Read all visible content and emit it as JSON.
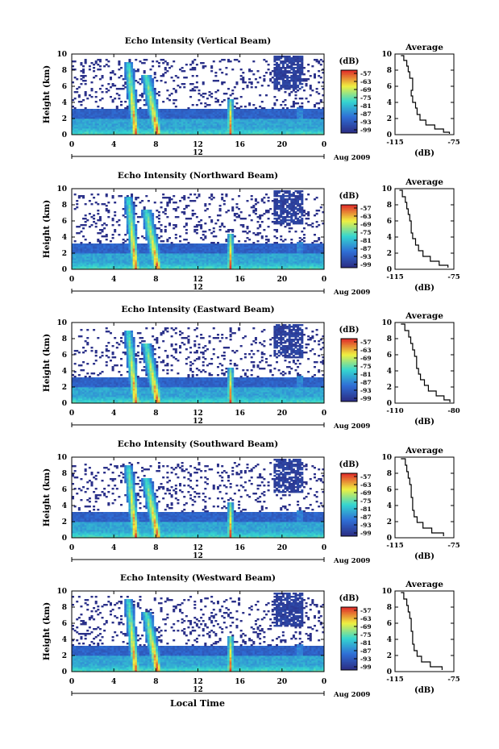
{
  "figure": {
    "xlabel": "Local Time",
    "colorbar_unit": "(dB)",
    "colorbar_ticks": [
      "-57",
      "-63",
      "-69",
      "-75",
      "-81",
      "-87",
      "-93",
      "-99"
    ],
    "date_label": "Aug 2009",
    "marker_label": "12",
    "colors": {
      "low": "#2b2f87",
      "mid_low": "#2f6fd6",
      "mid": "#35d6d0",
      "mid_high": "#f0f040",
      "high": "#e0302a"
    }
  },
  "chart_data": [
    {
      "type": "heatmap",
      "title": "Echo Intensity (Vertical Beam)",
      "ylabel": "Height (km)",
      "x_ticks": [
        "0",
        "4",
        "8",
        "12",
        "16",
        "20",
        "0"
      ],
      "y_ticks": [
        "0",
        "2",
        "4",
        "6",
        "8",
        "10"
      ],
      "xlim": [
        0,
        24
      ],
      "ylim": [
        0,
        10
      ],
      "colorbar_range": [
        -99,
        -57
      ],
      "profile": {
        "title": "Average",
        "xlabel": "(dB)",
        "x_ticks": [
          "-115",
          "-75"
        ],
        "y_ticks": [
          "0",
          "2",
          "4",
          "6",
          "8",
          "10"
        ],
        "xlim": [
          -115,
          -75
        ],
        "ylim": [
          0,
          10
        ],
        "points": [
          [
            -111,
            9.8
          ],
          [
            -109,
            9.2
          ],
          [
            -107,
            8.5
          ],
          [
            -106,
            7.8
          ],
          [
            -105,
            7.0
          ],
          [
            -103,
            6.3
          ],
          [
            -103,
            5.5
          ],
          [
            -104,
            4.8
          ],
          [
            -103,
            4.0
          ],
          [
            -101,
            3.3
          ],
          [
            -100,
            2.5
          ],
          [
            -98,
            1.8
          ],
          [
            -94,
            1.2
          ],
          [
            -88,
            0.7
          ],
          [
            -82,
            0.3
          ],
          [
            -78,
            0.1
          ]
        ]
      }
    },
    {
      "type": "heatmap",
      "title": "Echo Intensity (Northward Beam)",
      "ylabel": "Height (km)",
      "x_ticks": [
        "0",
        "4",
        "8",
        "12",
        "16",
        "20",
        "0"
      ],
      "y_ticks": [
        "0",
        "2",
        "4",
        "6",
        "8",
        "10"
      ],
      "xlim": [
        0,
        24
      ],
      "ylim": [
        0,
        10
      ],
      "colorbar_range": [
        -99,
        -57
      ],
      "profile": {
        "title": "Average",
        "xlabel": "(dB)",
        "x_ticks": [
          "-115",
          "-75"
        ],
        "y_ticks": [
          "0",
          "2",
          "4",
          "6",
          "8",
          "10"
        ],
        "xlim": [
          -115,
          -75
        ],
        "ylim": [
          0,
          10
        ],
        "points": [
          [
            -112,
            9.8
          ],
          [
            -110,
            9.0
          ],
          [
            -108,
            8.3
          ],
          [
            -107,
            7.5
          ],
          [
            -106,
            6.8
          ],
          [
            -105,
            6.0
          ],
          [
            -104,
            5.3
          ],
          [
            -104,
            4.5
          ],
          [
            -103,
            3.8
          ],
          [
            -101,
            3.0
          ],
          [
            -99,
            2.3
          ],
          [
            -96,
            1.6
          ],
          [
            -91,
            1.0
          ],
          [
            -85,
            0.5
          ],
          [
            -79,
            0.2
          ]
        ]
      }
    },
    {
      "type": "heatmap",
      "title": "Echo Intensity (Eastward Beam)",
      "ylabel": "Height (km)",
      "x_ticks": [
        "0",
        "4",
        "8",
        "12",
        "16",
        "20",
        "0"
      ],
      "y_ticks": [
        "0",
        "2",
        "4",
        "6",
        "8",
        "10"
      ],
      "xlim": [
        0,
        24
      ],
      "ylim": [
        0,
        10
      ],
      "colorbar_range": [
        -99,
        -57
      ],
      "profile": {
        "title": "Average",
        "xlabel": "(dB)",
        "x_ticks": [
          "-110",
          "-80"
        ],
        "y_ticks": [
          "0",
          "2",
          "4",
          "6",
          "8",
          "10"
        ],
        "xlim": [
          -110,
          -80
        ],
        "ylim": [
          0,
          10
        ],
        "points": [
          [
            -107,
            9.8
          ],
          [
            -105,
            9.0
          ],
          [
            -103,
            8.2
          ],
          [
            -102,
            7.4
          ],
          [
            -101,
            6.6
          ],
          [
            -100,
            5.8
          ],
          [
            -99,
            5.0
          ],
          [
            -99,
            4.3
          ],
          [
            -98,
            3.6
          ],
          [
            -97,
            2.9
          ],
          [
            -95,
            2.2
          ],
          [
            -93,
            1.5
          ],
          [
            -89,
            0.9
          ],
          [
            -85,
            0.4
          ],
          [
            -82,
            0.1
          ]
        ]
      }
    },
    {
      "type": "heatmap",
      "title": "Echo Intensity (Southward Beam)",
      "ylabel": "Height (km)",
      "x_ticks": [
        "0",
        "4",
        "8",
        "12",
        "16",
        "20",
        "0"
      ],
      "y_ticks": [
        "0",
        "2",
        "4",
        "6",
        "8",
        "10"
      ],
      "xlim": [
        0,
        24
      ],
      "ylim": [
        0,
        10
      ],
      "colorbar_range": [
        -99,
        -57
      ],
      "profile": {
        "title": "Average",
        "xlabel": "(dB)",
        "x_ticks": [
          "-115",
          "-75"
        ],
        "y_ticks": [
          "0",
          "2",
          "4",
          "6",
          "8",
          "10"
        ],
        "xlim": [
          -115,
          -75
        ],
        "ylim": [
          0,
          10
        ],
        "points": [
          [
            -111,
            9.8
          ],
          [
            -108,
            9.0
          ],
          [
            -107,
            8.2
          ],
          [
            -106,
            7.4
          ],
          [
            -105,
            6.6
          ],
          [
            -104,
            5.8
          ],
          [
            -104,
            5.0
          ],
          [
            -103,
            4.2
          ],
          [
            -103,
            3.4
          ],
          [
            -102,
            2.6
          ],
          [
            -100,
            1.9
          ],
          [
            -96,
            1.2
          ],
          [
            -90,
            0.6
          ],
          [
            -82,
            0.2
          ]
        ]
      }
    },
    {
      "type": "heatmap",
      "title": "Echo Intensity (Westward Beam)",
      "ylabel": "Height (km)",
      "x_ticks": [
        "0",
        "4",
        "8",
        "12",
        "16",
        "20",
        "0"
      ],
      "y_ticks": [
        "0",
        "2",
        "4",
        "6",
        "8",
        "10"
      ],
      "xlim": [
        0,
        24
      ],
      "ylim": [
        0,
        10
      ],
      "colorbar_range": [
        -99,
        -57
      ],
      "profile": {
        "title": "Average",
        "xlabel": "(dB)",
        "x_ticks": [
          "-115",
          "-75"
        ],
        "y_ticks": [
          "0",
          "2",
          "4",
          "6",
          "8",
          "10"
        ],
        "xlim": [
          -115,
          -75
        ],
        "ylim": [
          0,
          10
        ],
        "points": [
          [
            -111,
            9.8
          ],
          [
            -109,
            9.0
          ],
          [
            -107,
            8.2
          ],
          [
            -106,
            7.4
          ],
          [
            -105,
            6.6
          ],
          [
            -104,
            5.8
          ],
          [
            -104,
            5.0
          ],
          [
            -103,
            4.2
          ],
          [
            -103,
            3.4
          ],
          [
            -102,
            2.6
          ],
          [
            -100,
            1.9
          ],
          [
            -97,
            1.2
          ],
          [
            -91,
            0.6
          ],
          [
            -83,
            0.2
          ]
        ]
      }
    }
  ]
}
